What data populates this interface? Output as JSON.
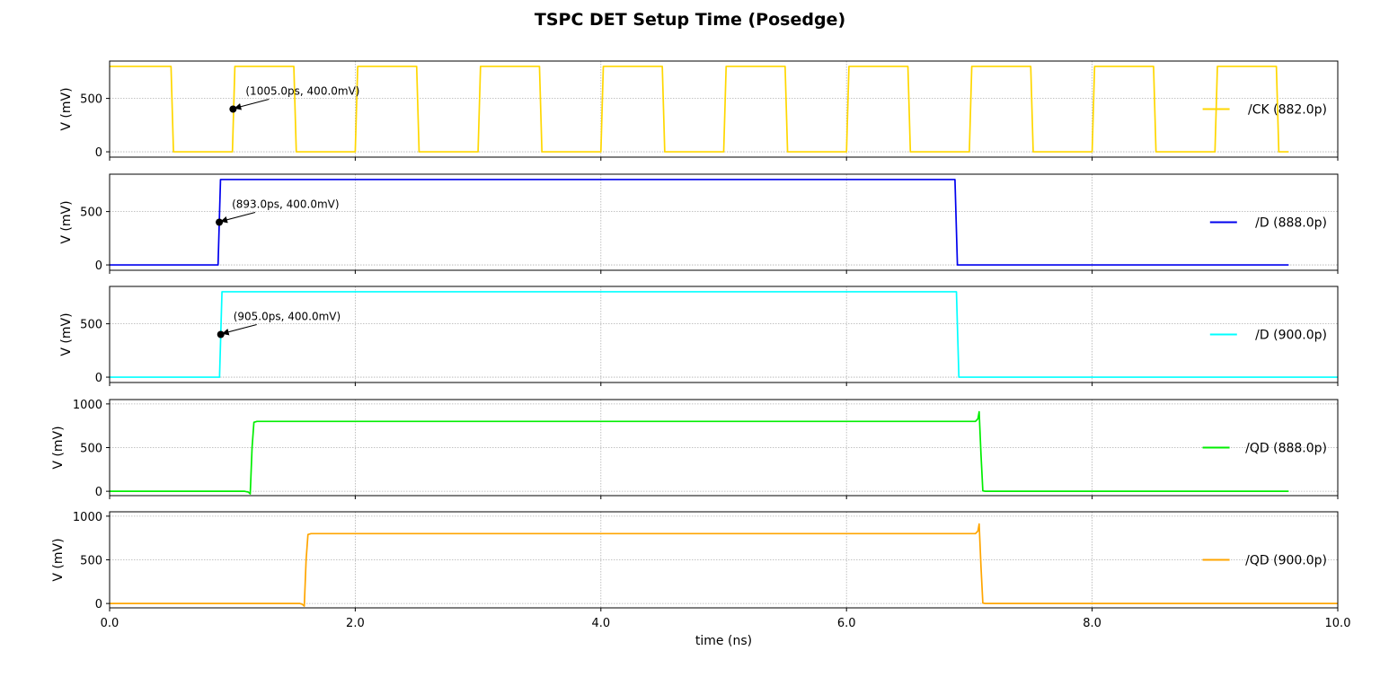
{
  "chart_data": {
    "type": "line",
    "title": "TSPC DET Setup Time (Posedge)",
    "xlabel": "time (ns)",
    "xlim": [
      0,
      10
    ],
    "x_ticks": [
      0,
      2,
      4,
      6,
      8,
      10
    ],
    "x_tick_labels": [
      "0.0",
      "2.0",
      "4.0",
      "6.0",
      "8.0",
      "10.0"
    ],
    "grid": true,
    "legend_position": "right",
    "panels": [
      {
        "ylabel": "V (mV)",
        "ylim": [
          -50,
          850
        ],
        "y_ticks": [
          0,
          500
        ],
        "series": [
          {
            "name": "/CK (882.0p)",
            "color": "#FFD700",
            "x": [
              0,
              0.5,
              0.52,
              1.0,
              1.02,
              1.5,
              1.52,
              2.0,
              2.02,
              2.5,
              2.52,
              3.0,
              3.02,
              3.5,
              3.52,
              4.0,
              4.02,
              4.5,
              4.52,
              5.0,
              5.02,
              5.5,
              5.52,
              6.0,
              6.02,
              6.5,
              6.52,
              7.0,
              7.02,
              7.5,
              7.52,
              8.0,
              8.02,
              8.5,
              8.52,
              9.0,
              9.02,
              9.5,
              9.52,
              9.6
            ],
            "y": [
              800,
              800,
              0,
              0,
              800,
              800,
              0,
              0,
              800,
              800,
              0,
              0,
              800,
              800,
              0,
              0,
              800,
              800,
              0,
              0,
              800,
              800,
              0,
              0,
              800,
              800,
              0,
              0,
              800,
              800,
              0,
              0,
              800,
              800,
              0,
              0,
              800,
              800,
              0,
              0
            ]
          }
        ],
        "annotation": {
          "text": "(1005.0ps, 400.0mV)",
          "x": 1.005,
          "y": 400
        }
      },
      {
        "ylabel": "V (mV)",
        "ylim": [
          -50,
          850
        ],
        "y_ticks": [
          0,
          500
        ],
        "series": [
          {
            "name": "/D (888.0p)",
            "color": "#0000EE",
            "x": [
              0,
              0.883,
              0.903,
              6.883,
              6.903,
              9.6
            ],
            "y": [
              0,
              0,
              800,
              800,
              0,
              0
            ]
          }
        ],
        "annotation": {
          "text": "(893.0ps, 400.0mV)",
          "x": 0.893,
          "y": 400
        }
      },
      {
        "ylabel": "V (mV)",
        "ylim": [
          -50,
          850
        ],
        "y_ticks": [
          0,
          500
        ],
        "series": [
          {
            "name": "/D (900.0p)",
            "color": "#00FFFF",
            "x": [
              0,
              0.895,
              0.915,
              6.895,
              6.915,
              10
            ],
            "y": [
              0,
              0,
              800,
              800,
              0,
              0
            ]
          }
        ],
        "annotation": {
          "text": "(905.0ps, 400.0mV)",
          "x": 0.905,
          "y": 400
        }
      },
      {
        "ylabel": "V (mV)",
        "ylim": [
          -50,
          1050
        ],
        "y_ticks": [
          0,
          500,
          1000
        ],
        "series": [
          {
            "name": "/QD (888.0p)",
            "color": "#00EE00",
            "x": [
              0,
              1.1,
              1.13,
              1.145,
              1.16,
              1.175,
              1.2,
              1.25,
              4,
              7.05,
              7.07,
              7.08,
              7.095,
              7.11,
              7.13,
              7.5,
              9.6
            ],
            "y": [
              0,
              0,
              -10,
              -30,
              500,
              790,
              800,
              800,
              800,
              800,
              830,
              910,
              420,
              5,
              0,
              0,
              0
            ]
          }
        ],
        "annotation": null
      },
      {
        "ylabel": "V (mV)",
        "ylim": [
          -50,
          1050
        ],
        "y_ticks": [
          0,
          500,
          1000
        ],
        "series": [
          {
            "name": "/QD (900.0p)",
            "color": "#FFA500",
            "x": [
              0,
              1.55,
              1.57,
              1.585,
              1.6,
              1.615,
              1.64,
              1.7,
              4,
              7.05,
              7.07,
              7.08,
              7.095,
              7.11,
              7.13,
              7.5,
              10
            ],
            "y": [
              0,
              0,
              -10,
              -30,
              500,
              790,
              800,
              800,
              800,
              800,
              830,
              910,
              420,
              5,
              0,
              0,
              0
            ]
          }
        ],
        "annotation": null
      }
    ]
  }
}
